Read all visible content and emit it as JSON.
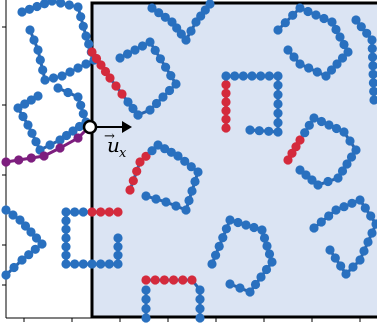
{
  "colors": {
    "domain_fill": "#dbe4f3",
    "domain_border": "#000000",
    "bead_blue": "#2970bf",
    "bond_blue": "#2a64ad",
    "bead_red": "#d42a3c",
    "bead_purple": "#7d1e7e",
    "tracer_fill": "#ffffff",
    "tracer_stroke": "#000000"
  },
  "annotation": {
    "vector_symbol": "u",
    "vector_subscript": "x",
    "vector_arrow_accent": "→"
  },
  "icons": {
    "tracer": "open-circle-marker",
    "direction": "arrow-right-icon"
  }
}
